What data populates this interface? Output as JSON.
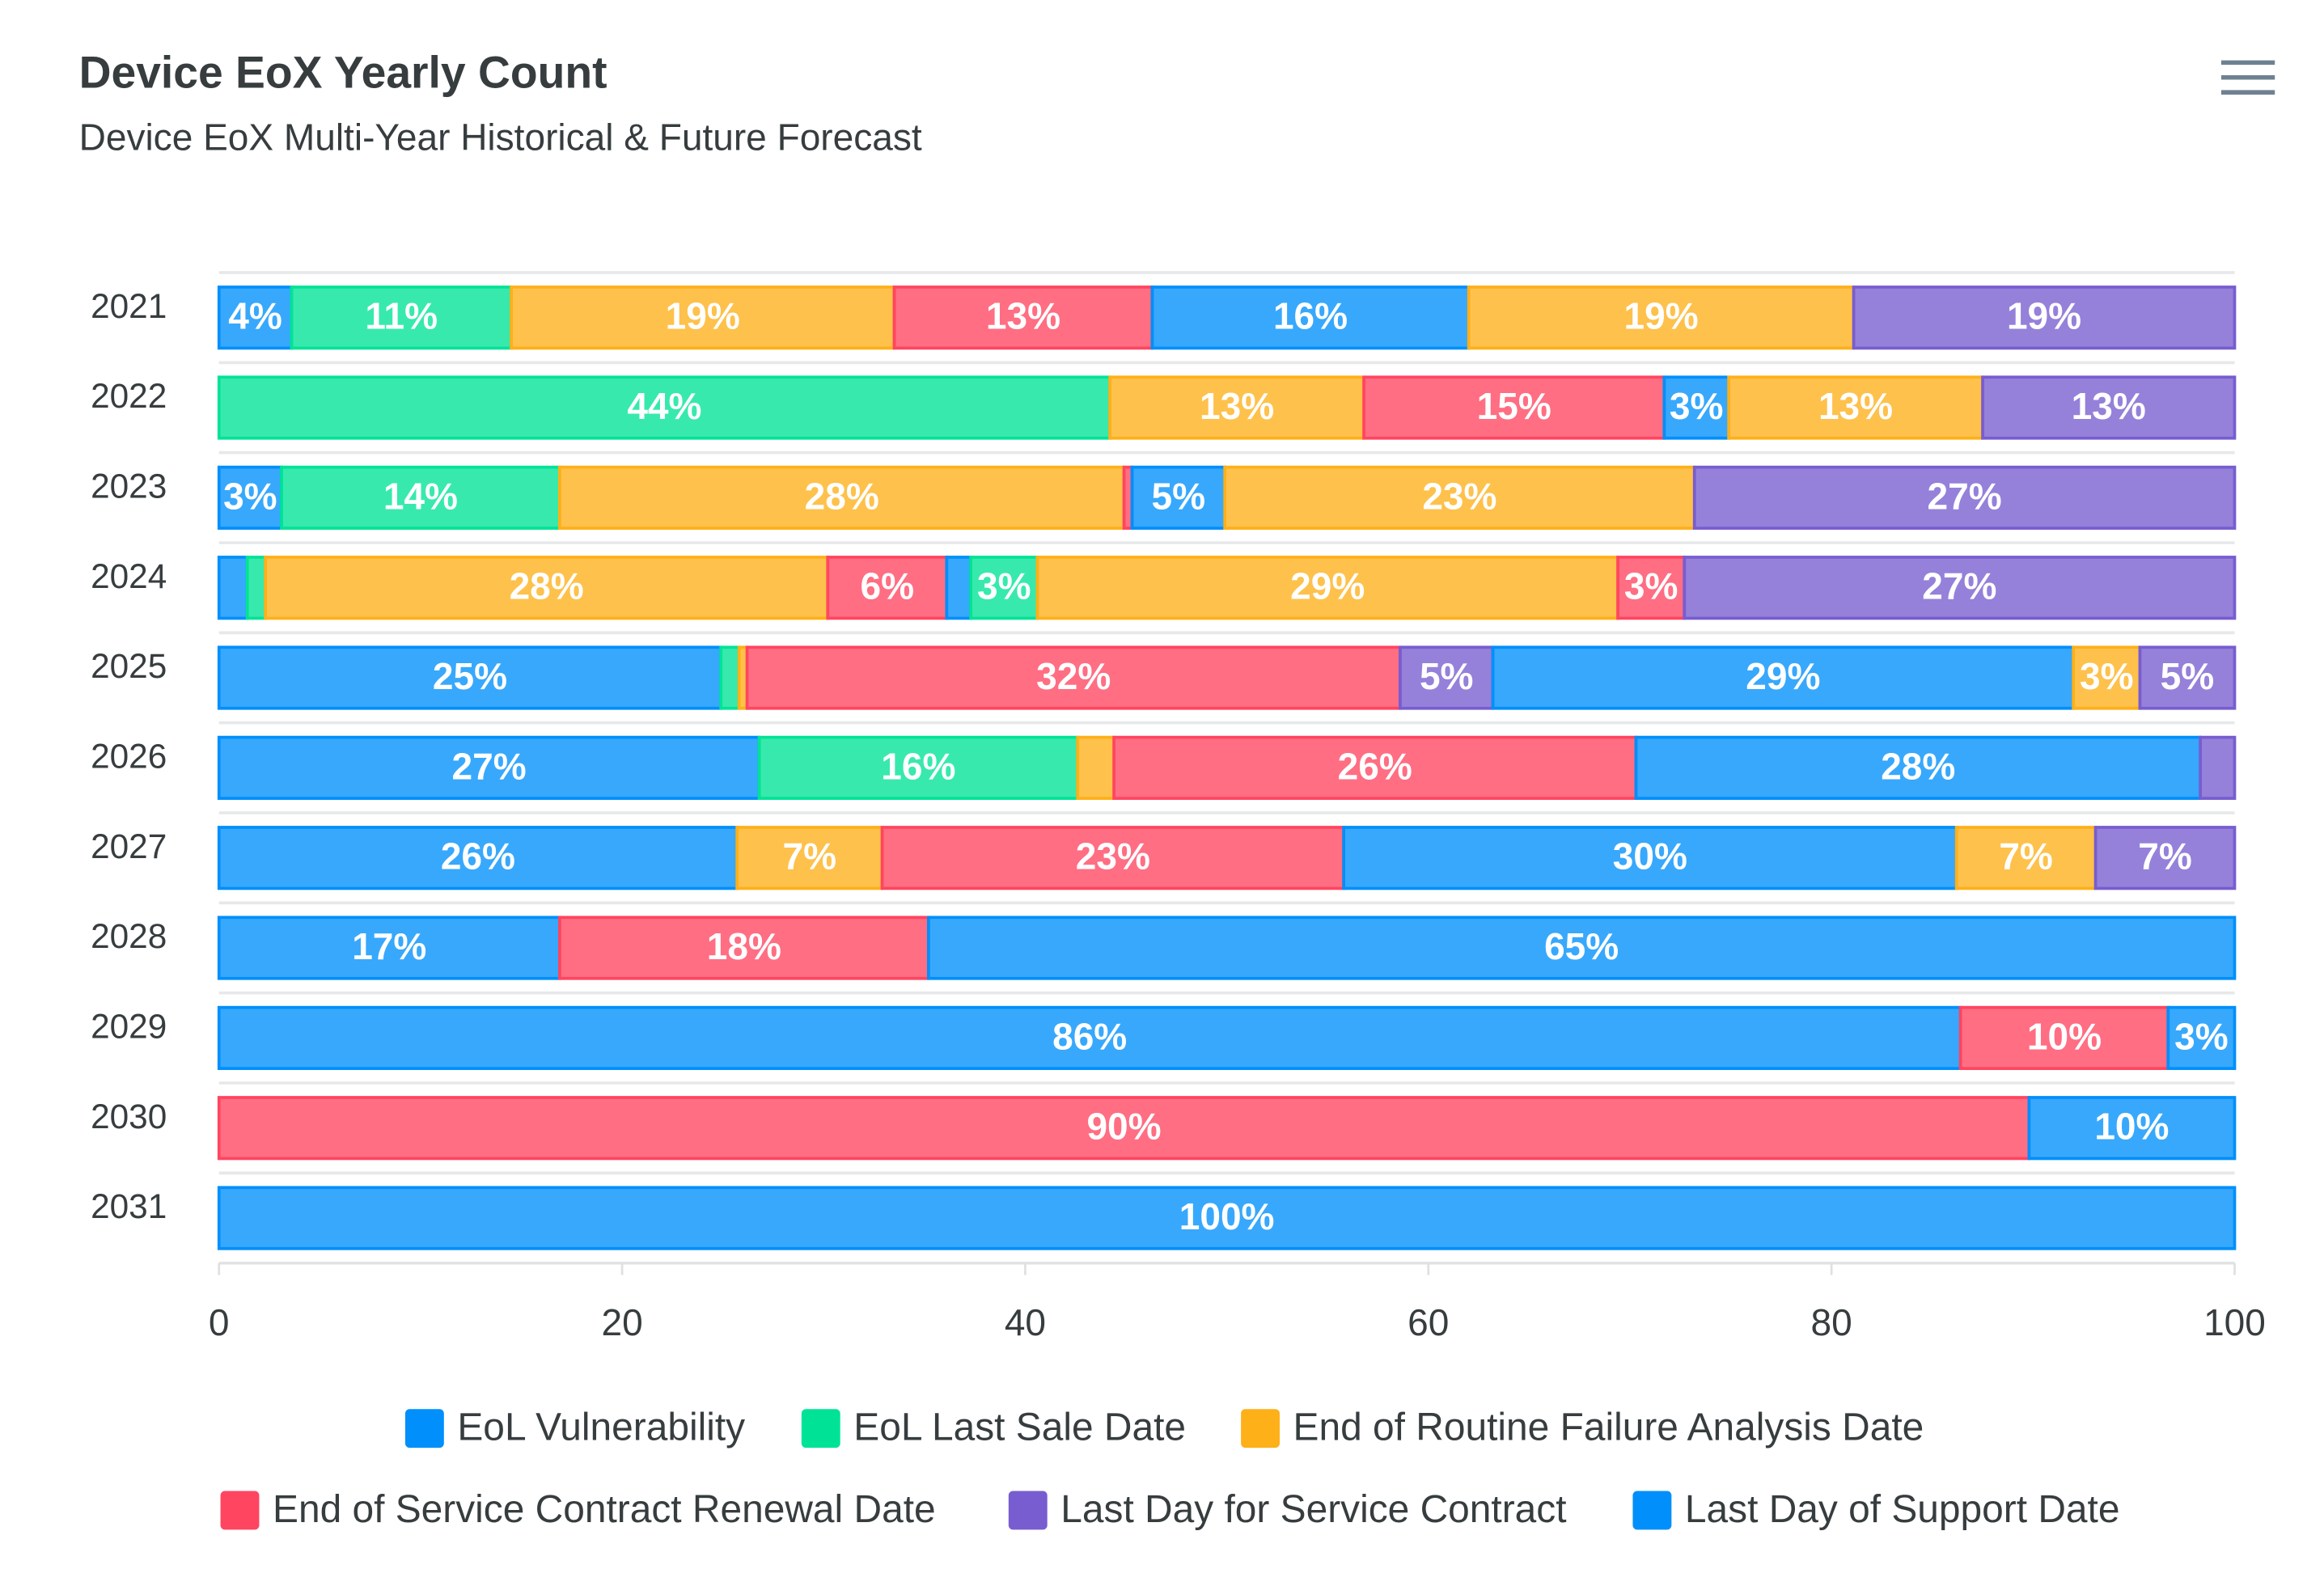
{
  "chart_data": {
    "type": "stacked-bar-100",
    "title": "Device EoX Yearly Count",
    "subtitle": "Device EoX Multi-Year Historical & Future Forecast",
    "categories": [
      "2021",
      "2022",
      "2023",
      "2024",
      "2025",
      "2026",
      "2027",
      "2028",
      "2029",
      "2030",
      "2031"
    ],
    "series": [
      {
        "name": "EoL Vulnerability",
        "color": "#008FFB"
      },
      {
        "name": "EoL Last Sale Date",
        "color": "#00E396"
      },
      {
        "name": "End of Routine Failure Analysis Date",
        "color": "#FEB019"
      },
      {
        "name": "End of Service Contract Renewal Date",
        "color": "#FF4560"
      },
      {
        "name": "Last Day for Service Contract",
        "color": "#775DD0"
      },
      {
        "name": "Last Day of Support Date",
        "color": "#008FFB"
      }
    ],
    "bars": [
      {
        "values": [
          3.6,
          10.9,
          19,
          12.8,
          15.7,
          19.1,
          18.9
        ],
        "value_labels": [
          "4%",
          "11%",
          "19%",
          "13%",
          "16%",
          "19%",
          "19%"
        ],
        "colors": [
          "#008FFB",
          "#00E396",
          "#FEB019",
          "#FF4560",
          "#008FFB",
          "#FEB019",
          "#775DD0"
        ]
      },
      {
        "values": [
          44.2,
          12.6,
          14.9,
          3.2,
          12.6,
          12.5
        ],
        "value_labels": [
          "44%",
          "13%",
          "15%",
          "3%",
          "13%",
          "13%"
        ],
        "colors": [
          "#00E396",
          "#FEB019",
          "#FF4560",
          "#008FFB",
          "#FEB019",
          "#775DD0"
        ]
      },
      {
        "values": [
          3.1,
          13.8,
          28,
          0.4,
          4.6,
          23.3,
          26.8
        ],
        "value_labels": [
          "3%",
          "14%",
          "28%",
          null,
          "5%",
          "23%",
          "27%"
        ],
        "colors": [
          "#008FFB",
          "#00E396",
          "#FEB019",
          "#FF4560",
          "#008FFB",
          "#FEB019",
          "#775DD0"
        ]
      },
      {
        "values": [
          1.4,
          0.9,
          27.9,
          5.9,
          1.2,
          3.3,
          28.8,
          3.3,
          27.3
        ],
        "value_labels": [
          null,
          null,
          "28%",
          "6%",
          null,
          "3%",
          "29%",
          "3%",
          "27%"
        ],
        "colors": [
          "#008FFB",
          "#00E396",
          "#FEB019",
          "#FF4560",
          "#008FFB",
          "#00E396",
          "#FEB019",
          "#FF4560",
          "#775DD0"
        ]
      },
      {
        "values": [
          24.9,
          0.9,
          0.4,
          32.4,
          4.6,
          28.8,
          3.3,
          4.7
        ],
        "value_labels": [
          "25%",
          null,
          null,
          "32%",
          "5%",
          "29%",
          "3%",
          "5%"
        ],
        "colors": [
          "#008FFB",
          "#00E396",
          "#FEB019",
          "#FF4560",
          "#775DD0",
          "#008FFB",
          "#FEB019",
          "#775DD0"
        ]
      },
      {
        "values": [
          26.8,
          15.8,
          1.8,
          25.9,
          28,
          1.7
        ],
        "value_labels": [
          "27%",
          "16%",
          null,
          "26%",
          "28%",
          null
        ],
        "colors": [
          "#008FFB",
          "#00E396",
          "#FEB019",
          "#FF4560",
          "#008FFB",
          "#775DD0"
        ]
      },
      {
        "values": [
          25.7,
          7.2,
          22.9,
          30.4,
          6.9,
          6.9
        ],
        "value_labels": [
          "26%",
          "7%",
          "23%",
          "30%",
          "7%",
          "7%"
        ],
        "colors": [
          "#008FFB",
          "#FEB019",
          "#FF4560",
          "#008FFB",
          "#FEB019",
          "#775DD0"
        ]
      },
      {
        "values": [
          16.9,
          18.3,
          64.8
        ],
        "value_labels": [
          "17%",
          "18%",
          "65%"
        ],
        "colors": [
          "#008FFB",
          "#FF4560",
          "#008FFB"
        ]
      },
      {
        "values": [
          86.4,
          10.3,
          3.3
        ],
        "value_labels": [
          "86%",
          "10%",
          "3%"
        ],
        "colors": [
          "#008FFB",
          "#FF4560",
          "#008FFB"
        ]
      },
      {
        "values": [
          89.8,
          10.2
        ],
        "value_labels": [
          "90%",
          "10%"
        ],
        "colors": [
          "#FF4560",
          "#008FFB"
        ]
      },
      {
        "values": [
          100
        ],
        "value_labels": [
          "100%"
        ],
        "colors": [
          "#008FFB"
        ]
      }
    ],
    "xlim": [
      0,
      100
    ],
    "xticks": [
      0,
      20,
      40,
      60,
      80,
      100
    ],
    "grid": true,
    "legend": "bottom"
  }
}
